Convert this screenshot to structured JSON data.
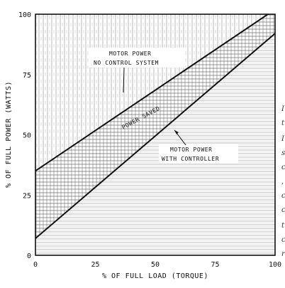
{
  "chart_data": {
    "type": "line",
    "title": "",
    "xlabel": "% OF FULL LOAD (TORQUE)",
    "ylabel": "% OF FULL POWER (WATTS)",
    "xlim": [
      0,
      100
    ],
    "ylim": [
      0,
      100
    ],
    "x_ticks": [
      0,
      25,
      50,
      75,
      100
    ],
    "y_ticks": [
      0,
      25,
      50,
      75,
      100
    ],
    "series": [
      {
        "name": "MOTOR POWER NO CONTROL SYSTEM",
        "x": [
          0,
          100
        ],
        "y": [
          35,
          102
        ],
        "color": "#111111"
      },
      {
        "name": "MOTOR POWER WITH CONTROLLER",
        "x": [
          0,
          100
        ],
        "y": [
          7,
          92
        ],
        "color": "#111111"
      }
    ],
    "annotations": {
      "no_control": [
        "MOTOR POWER",
        "NO CONTROL SYSTEM"
      ],
      "with_controller": [
        "MOTOR POWER",
        "WITH CONTROLLER"
      ],
      "saved_region": "POWER SAVED"
    },
    "grid": false,
    "legend": "none",
    "fill_style": "hatched"
  },
  "page_edge_text": [
    "I",
    "t",
    "I",
    "s",
    "c",
    ",",
    "c",
    "c",
    "t",
    "c",
    "r"
  ]
}
